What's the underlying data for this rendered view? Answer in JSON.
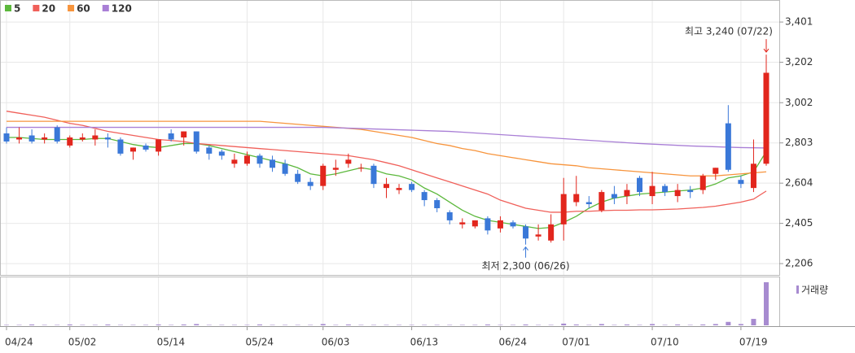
{
  "chart_data": {
    "type": "candlestick",
    "categories": [
      "04/24",
      null,
      null,
      null,
      null,
      "05/02",
      null,
      null,
      null,
      null,
      null,
      null,
      "05/14",
      null,
      null,
      null,
      null,
      null,
      null,
      "05/24",
      null,
      null,
      null,
      null,
      null,
      "06/03",
      null,
      null,
      null,
      null,
      null,
      null,
      "06/13",
      null,
      null,
      null,
      null,
      null,
      null,
      "06/24",
      null,
      null,
      null,
      null,
      "07/01",
      null,
      null,
      null,
      null,
      null,
      null,
      "07/10",
      null,
      null,
      null,
      null,
      null,
      null,
      "07/19",
      null,
      null
    ],
    "open": [
      2850,
      2820,
      2840,
      2820,
      2880,
      2790,
      2820,
      2820,
      2830,
      2820,
      2760,
      2790,
      2760,
      2850,
      2830,
      2860,
      2780,
      2760,
      2700,
      2700,
      2740,
      2720,
      2700,
      2650,
      2610,
      2590,
      2670,
      2700,
      2680,
      2690,
      2580,
      2570,
      2600,
      2560,
      2520,
      2460,
      2400,
      2390,
      2430,
      2380,
      2410,
      2390,
      2340,
      2320,
      2400,
      2510,
      2510,
      2470,
      2550,
      2540,
      2630,
      2540,
      2590,
      2540,
      2570,
      2570,
      2650,
      2900,
      2620,
      2580,
      2700
    ],
    "high": [
      2880,
      2880,
      2870,
      2850,
      2890,
      2840,
      2850,
      2870,
      2850,
      2830,
      2780,
      2800,
      2820,
      2870,
      2860,
      2860,
      2790,
      2770,
      2750,
      2760,
      2750,
      2740,
      2720,
      2670,
      2630,
      2700,
      2720,
      2750,
      2700,
      2700,
      2630,
      2600,
      2610,
      2570,
      2530,
      2470,
      2430,
      2420,
      2440,
      2440,
      2420,
      2400,
      2400,
      2450,
      2630,
      2640,
      2540,
      2570,
      2590,
      2600,
      2640,
      2660,
      2600,
      2600,
      2590,
      2650,
      2680,
      2990,
      2640,
      2820,
      3240
    ],
    "low": [
      2800,
      2800,
      2800,
      2800,
      2800,
      2780,
      2810,
      2790,
      2780,
      2740,
      2720,
      2760,
      2740,
      2810,
      2790,
      2750,
      2720,
      2720,
      2680,
      2690,
      2680,
      2660,
      2640,
      2600,
      2570,
      2570,
      2640,
      2680,
      2660,
      2580,
      2530,
      2550,
      2560,
      2490,
      2460,
      2400,
      2380,
      2380,
      2350,
      2360,
      2380,
      2300,
      2320,
      2310,
      2320,
      2490,
      2480,
      2460,
      2500,
      2500,
      2540,
      2500,
      2540,
      2510,
      2530,
      2550,
      2620,
      2660,
      2580,
      2560,
      2690
    ],
    "close": [
      2810,
      2830,
      2810,
      2830,
      2810,
      2830,
      2830,
      2840,
      2820,
      2750,
      2780,
      2770,
      2820,
      2820,
      2860,
      2760,
      2750,
      2740,
      2720,
      2740,
      2700,
      2680,
      2650,
      2610,
      2590,
      2690,
      2680,
      2720,
      2680,
      2600,
      2600,
      2580,
      2570,
      2520,
      2480,
      2420,
      2410,
      2420,
      2370,
      2420,
      2390,
      2330,
      2350,
      2400,
      2550,
      2550,
      2500,
      2560,
      2530,
      2570,
      2560,
      2590,
      2560,
      2570,
      2560,
      2640,
      2680,
      2670,
      2600,
      2700,
      3150
    ],
    "up_color": "#e2261d",
    "down_color": "#3a78d8",
    "series": [
      {
        "name": "5",
        "color": "#5cb83c",
        "values": [
          2830,
          2830,
          2825,
          2820,
          2820,
          2820,
          2820,
          2825,
          2825,
          2810,
          2795,
          2785,
          2780,
          2790,
          2800,
          2800,
          2790,
          2775,
          2760,
          2745,
          2730,
          2715,
          2700,
          2680,
          2650,
          2640,
          2650,
          2665,
          2680,
          2670,
          2650,
          2640,
          2620,
          2580,
          2550,
          2510,
          2470,
          2440,
          2420,
          2410,
          2400,
          2390,
          2380,
          2385,
          2410,
          2440,
          2480,
          2510,
          2530,
          2540,
          2550,
          2555,
          2560,
          2565,
          2570,
          2580,
          2600,
          2630,
          2640,
          2660,
          2760
        ]
      },
      {
        "name": "20",
        "color": "#f0605a",
        "values": [
          2960,
          2950,
          2940,
          2930,
          2915,
          2900,
          2890,
          2875,
          2860,
          2850,
          2840,
          2830,
          2820,
          2815,
          2810,
          2800,
          2795,
          2790,
          2785,
          2780,
          2775,
          2770,
          2765,
          2760,
          2755,
          2750,
          2745,
          2740,
          2730,
          2720,
          2705,
          2690,
          2670,
          2650,
          2630,
          2610,
          2590,
          2570,
          2550,
          2520,
          2500,
          2480,
          2470,
          2460,
          2460,
          2465,
          2465,
          2468,
          2470,
          2470,
          2472,
          2472,
          2474,
          2476,
          2480,
          2484,
          2490,
          2500,
          2510,
          2525,
          2565
        ]
      },
      {
        "name": "60",
        "color": "#f7943c",
        "values": [
          2910,
          2910,
          2910,
          2910,
          2910,
          2910,
          2910,
          2910,
          2910,
          2910,
          2910,
          2910,
          2910,
          2910,
          2910,
          2910,
          2910,
          2910,
          2910,
          2910,
          2910,
          2905,
          2900,
          2895,
          2890,
          2885,
          2880,
          2875,
          2870,
          2860,
          2850,
          2840,
          2830,
          2815,
          2800,
          2790,
          2775,
          2765,
          2750,
          2740,
          2730,
          2720,
          2710,
          2700,
          2695,
          2690,
          2680,
          2675,
          2670,
          2665,
          2660,
          2655,
          2650,
          2645,
          2640,
          2640,
          2640,
          2645,
          2650,
          2655,
          2660
        ]
      },
      {
        "name": "120",
        "color": "#a97fd6",
        "values": [
          2880,
          2880,
          2880,
          2880,
          2880,
          2880,
          2880,
          2880,
          2880,
          2880,
          2880,
          2880,
          2880,
          2880,
          2880,
          2880,
          2880,
          2880,
          2880,
          2880,
          2880,
          2880,
          2880,
          2880,
          2880,
          2880,
          2878,
          2876,
          2874,
          2872,
          2870,
          2868,
          2866,
          2864,
          2862,
          2860,
          2856,
          2852,
          2848,
          2844,
          2840,
          2836,
          2832,
          2828,
          2824,
          2820,
          2816,
          2812,
          2808,
          2804,
          2800,
          2797,
          2794,
          2791,
          2788,
          2786,
          2784,
          2782,
          2780,
          2779,
          2778
        ]
      }
    ],
    "volume": {
      "name": "거래량",
      "color": "#a78bd0",
      "ylim": [
        0,
        100
      ],
      "values": [
        1,
        1,
        2,
        1,
        1,
        2,
        1,
        1,
        2,
        1,
        1,
        1,
        2,
        1,
        2,
        3,
        1,
        1,
        1,
        1,
        2,
        1,
        1,
        1,
        1,
        3,
        1,
        2,
        1,
        1,
        1,
        1,
        1,
        1,
        1,
        1,
        1,
        1,
        2,
        1,
        1,
        2,
        1,
        1,
        4,
        2,
        1,
        3,
        1,
        2,
        1,
        3,
        1,
        2,
        1,
        2,
        3,
        8,
        3,
        15,
        100
      ]
    },
    "ylim": [
      2150,
      3510
    ],
    "yticks": [
      {
        "value": 2206,
        "label": "2,206"
      },
      {
        "value": 2405,
        "label": "2,405"
      },
      {
        "value": 2604,
        "label": "2,604"
      },
      {
        "value": 2803,
        "label": "2,803"
      },
      {
        "value": 3002,
        "label": "3,002"
      },
      {
        "value": 3202,
        "label": "3,202"
      },
      {
        "value": 3401,
        "label": "3,401"
      }
    ],
    "grid": true,
    "annotations": {
      "high": "최고 3,240 (07/22)",
      "low": "최저 2,300 (06/26)"
    }
  }
}
